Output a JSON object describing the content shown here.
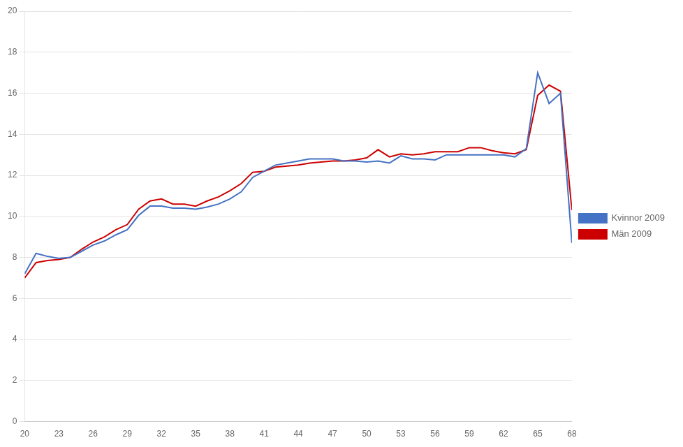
{
  "chart_data": {
    "type": "line",
    "x": [
      20,
      21,
      22,
      23,
      24,
      25,
      26,
      27,
      28,
      29,
      30,
      31,
      32,
      33,
      34,
      35,
      36,
      37,
      38,
      39,
      40,
      41,
      42,
      43,
      44,
      45,
      46,
      47,
      48,
      49,
      50,
      51,
      52,
      53,
      54,
      55,
      56,
      57,
      58,
      59,
      60,
      61,
      62,
      63,
      64,
      65,
      66,
      67,
      68
    ],
    "series": [
      {
        "name": "Kvinnor 2009",
        "color": "#4472C4",
        "values": [
          7.2,
          8.2,
          8.05,
          7.95,
          8.0,
          8.3,
          8.6,
          8.8,
          9.1,
          9.35,
          10.05,
          10.5,
          10.5,
          10.4,
          10.4,
          10.35,
          10.45,
          10.6,
          10.85,
          11.2,
          11.9,
          12.2,
          12.5,
          12.6,
          12.7,
          12.8,
          12.8,
          12.8,
          12.7,
          12.7,
          12.65,
          12.7,
          12.6,
          12.95,
          12.8,
          12.8,
          12.75,
          13.0,
          13.0,
          13.0,
          13.0,
          13.0,
          13.0,
          12.9,
          13.3,
          17.0,
          15.5,
          16.0,
          8.7
        ]
      },
      {
        "name": "Män 2009",
        "color": "#CC0000",
        "values": [
          7.0,
          7.75,
          7.85,
          7.9,
          8.0,
          8.4,
          8.75,
          9.0,
          9.35,
          9.6,
          10.35,
          10.75,
          10.85,
          10.6,
          10.6,
          10.5,
          10.75,
          10.95,
          11.25,
          11.6,
          12.15,
          12.2,
          12.4,
          12.45,
          12.5,
          12.6,
          12.65,
          12.7,
          12.7,
          12.75,
          12.85,
          13.25,
          12.9,
          13.05,
          13.0,
          13.05,
          13.15,
          13.15,
          13.15,
          13.35,
          13.35,
          13.2,
          13.1,
          13.05,
          13.25,
          15.9,
          16.4,
          16.1,
          10.3
        ]
      }
    ],
    "xlim": [
      20,
      68
    ],
    "xticks": [
      20,
      23,
      26,
      29,
      32,
      35,
      38,
      41,
      44,
      47,
      50,
      53,
      56,
      59,
      62,
      65,
      68
    ],
    "ylim": [
      0,
      20
    ],
    "yticks": [
      0,
      2,
      4,
      6,
      8,
      10,
      12,
      14,
      16,
      18,
      20
    ],
    "grid": "y",
    "legend": "right"
  }
}
